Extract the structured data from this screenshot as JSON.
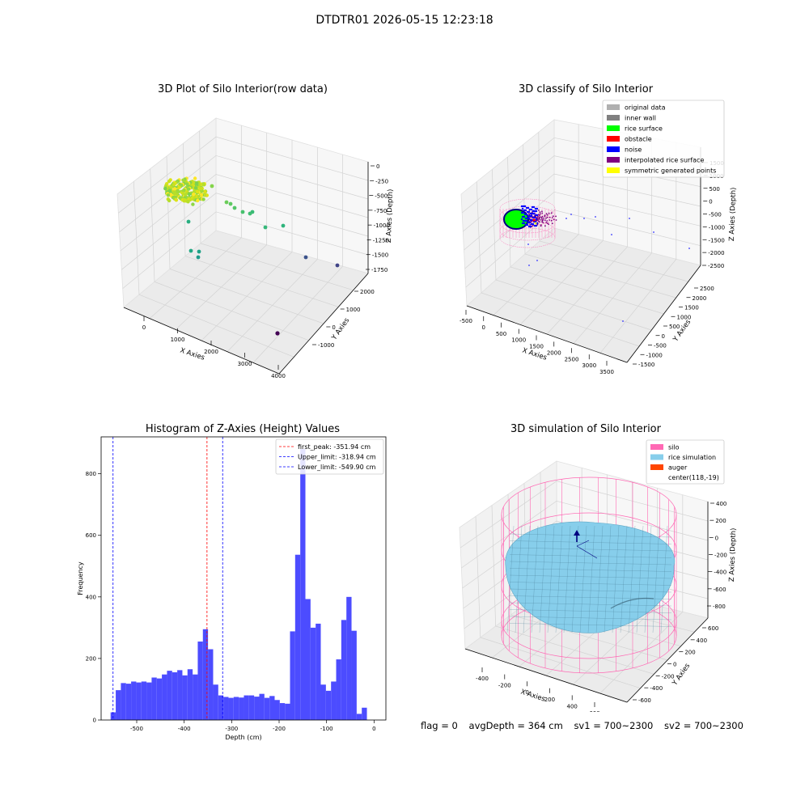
{
  "figure": {
    "title": "DTDTR01 2026-05-15 12:23:18"
  },
  "chart_data": [
    {
      "type": "scatter",
      "title": "3D Plot of Silo Interior(row data)",
      "xlabel": "X Axies",
      "ylabel": "Y Axies",
      "zlabel": "Z Axies (Depth)",
      "x_ticks": [
        "0",
        "1000",
        "2000",
        "3000",
        "4000"
      ],
      "y_ticks": [
        "-1000",
        "0",
        "1000",
        "2000"
      ],
      "z_ticks": [
        "0",
        "-250",
        "-500",
        "-750",
        "-1000",
        "-1250",
        "-1500",
        "-1750"
      ],
      "xlim": [
        -500,
        4000
      ],
      "ylim": [
        -1500,
        2500
      ],
      "zlim": [
        -1800,
        0
      ],
      "colormap": "viridis",
      "grid": true
    },
    {
      "type": "scatter",
      "title": "3D classify of Silo Interior",
      "xlabel": "X Axies",
      "ylabel": "Y Axies",
      "zlabel": "Z Axies (Depth)",
      "x_ticks": [
        "-500",
        "0",
        "500",
        "1000",
        "1500",
        "2000",
        "2500",
        "3000",
        "3500"
      ],
      "y_ticks": [
        "-1500",
        "-1000",
        "-500",
        "0",
        "500",
        "1000",
        "1500",
        "2000",
        "2500"
      ],
      "z_ticks": [
        "1500",
        "1000",
        "500",
        "0",
        "-500",
        "-1000",
        "-1500",
        "-2000",
        "-2500"
      ],
      "legend": [
        {
          "label": "original data",
          "color": "#b0b0b0"
        },
        {
          "label": "inner wall",
          "color": "#808080"
        },
        {
          "label": "rice surface",
          "color": "#00ff00"
        },
        {
          "label": "obstacle",
          "color": "#ff0000"
        },
        {
          "label": "noise",
          "color": "#0000ff"
        },
        {
          "label": "interpolated rice surface",
          "color": "#800080"
        },
        {
          "label": "symmetric generated points",
          "color": "#ffff00"
        }
      ],
      "legend_loc": "upper right",
      "grid": true
    },
    {
      "type": "bar",
      "title": "Histogram of Z-Axies (Height) Values",
      "xlabel": "Depth (cm)",
      "ylabel": "Frequency",
      "xlim": [
        -575,
        25
      ],
      "ylim": [
        0,
        920
      ],
      "x_ticks": [
        -500,
        -400,
        -300,
        -200,
        -100,
        0
      ],
      "y_ticks": [
        0,
        200,
        400,
        600,
        800
      ],
      "bin_width": 10.8,
      "bin_start": -555,
      "values": [
        25,
        97,
        120,
        118,
        125,
        122,
        125,
        122,
        138,
        135,
        148,
        160,
        155,
        162,
        145,
        165,
        148,
        255,
        295,
        230,
        115,
        80,
        75,
        72,
        75,
        73,
        80,
        80,
        76,
        85,
        72,
        78,
        65,
        55,
        53,
        288,
        537,
        880,
        393,
        300,
        313,
        115,
        95,
        125,
        197,
        325,
        400,
        290,
        20,
        40
      ],
      "bar_color": "#4c4cff",
      "vlines": [
        {
          "label": "first_peak: -351.94 cm",
          "x": -351.94,
          "color": "#ff0000"
        },
        {
          "label": "Upper_limit: -318.94 cm",
          "x": -318.94,
          "color": "#0000ff"
        },
        {
          "label": "Lower_limit: -549.90 cm",
          "x": -549.9,
          "color": "#0000ff"
        }
      ],
      "legend_loc": "upper right"
    },
    {
      "type": "scatter",
      "title": "3D simulation of Silo Interior",
      "xlabel": "X Axies",
      "ylabel": "Y Axies",
      "zlabel": "Z Axies (Depth)",
      "x_ticks": [
        "-400",
        "-200",
        "0",
        "200",
        "400",
        "600"
      ],
      "y_ticks": [
        "-600",
        "-400",
        "-200",
        "0",
        "200",
        "400",
        "600"
      ],
      "z_ticks": [
        "400",
        "200",
        "0",
        "-200",
        "-400",
        "-600",
        "-800"
      ],
      "legend": [
        {
          "label": "silo",
          "color": "#ff69b4"
        },
        {
          "label": "rice simulation",
          "color": "#87ceeb"
        },
        {
          "label": "auger",
          "color": "#ff4500"
        },
        {
          "label": "center(118,-19)",
          "color": ""
        }
      ],
      "legend_loc": "upper right",
      "grid": true
    }
  ],
  "info": {
    "flag": "flag = 0",
    "avg_depth": "avgDepth = 364 cm",
    "sv1": "sv1 = 700~2300",
    "sv2": "sv2 = 700~2300"
  }
}
